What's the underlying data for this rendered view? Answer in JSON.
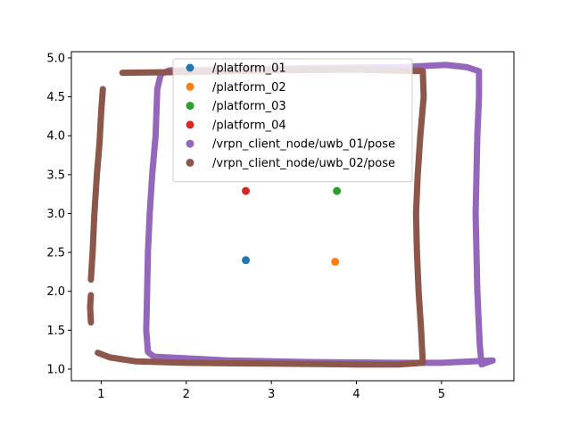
{
  "chart_data": {
    "type": "scatter",
    "title": "",
    "xlabel": "",
    "ylabel": "",
    "xlim": [
      0.65,
      5.85
    ],
    "ylim": [
      0.85,
      5.08
    ],
    "xticks": [
      1,
      2,
      3,
      4,
      5
    ],
    "yticks": [
      1.0,
      1.5,
      2.0,
      2.5,
      3.0,
      3.5,
      4.0,
      4.5,
      5.0
    ],
    "xtick_labels": [
      "1",
      "2",
      "3",
      "4",
      "5"
    ],
    "ytick_labels": [
      "1.0",
      "1.5",
      "2.0",
      "2.5",
      "3.0",
      "3.5",
      "4.0",
      "4.5",
      "5.0"
    ],
    "grid": false,
    "legend_position": "top-center",
    "series": [
      {
        "name": "/platform_01",
        "color": "#1f77b4",
        "style": "points",
        "points": [
          [
            2.7,
            2.4
          ]
        ]
      },
      {
        "name": "/platform_02",
        "color": "#ff7f0e",
        "style": "points",
        "points": [
          [
            3.75,
            2.38
          ]
        ]
      },
      {
        "name": "/platform_03",
        "color": "#2ca02c",
        "style": "points",
        "points": [
          [
            3.77,
            3.29
          ]
        ]
      },
      {
        "name": "/platform_04",
        "color": "#d62728",
        "style": "points",
        "points": [
          [
            2.7,
            3.29
          ]
        ]
      },
      {
        "name": "/vrpn_client_node/uwb_01/pose",
        "color": "#9467bd",
        "style": "trajectory",
        "segments": [
          [
            [
              1.62,
              1.16
            ],
            [
              2.5,
              1.11
            ],
            [
              3.5,
              1.09
            ],
            [
              4.5,
              1.08
            ],
            [
              5.0,
              1.08
            ],
            [
              5.6,
              1.11
            ],
            [
              5.47,
              1.06
            ],
            [
              5.45,
              1.3
            ],
            [
              5.42,
              2.0
            ],
            [
              5.4,
              3.0
            ],
            [
              5.42,
              4.0
            ],
            [
              5.44,
              4.5
            ],
            [
              5.44,
              4.83
            ],
            [
              5.3,
              4.88
            ],
            [
              5.05,
              4.91
            ],
            [
              4.85,
              4.9
            ],
            [
              4.5,
              4.88
            ],
            [
              3.5,
              4.87
            ],
            [
              2.5,
              4.85
            ],
            [
              1.8,
              4.84
            ],
            [
              1.7,
              4.79
            ],
            [
              1.66,
              4.6
            ],
            [
              1.64,
              4.0
            ],
            [
              1.6,
              3.5
            ],
            [
              1.57,
              3.0
            ],
            [
              1.55,
              2.5
            ],
            [
              1.54,
              2.0
            ],
            [
              1.53,
              1.5
            ],
            [
              1.55,
              1.22
            ],
            [
              1.62,
              1.16
            ]
          ]
        ]
      },
      {
        "name": "/vrpn_client_node/uwb_02/pose",
        "color": "#8c564b",
        "style": "trajectory",
        "segments": [
          [
            [
              1.25,
              4.81
            ],
            [
              2.0,
              4.82
            ],
            [
              3.0,
              4.84
            ],
            [
              4.0,
              4.85
            ],
            [
              4.78,
              4.83
            ],
            [
              4.79,
              4.5
            ],
            [
              4.75,
              4.0
            ],
            [
              4.72,
              3.5
            ],
            [
              4.7,
              3.0
            ],
            [
              4.71,
              2.5
            ],
            [
              4.73,
              2.0
            ],
            [
              4.76,
              1.5
            ],
            [
              4.78,
              1.08
            ],
            [
              4.5,
              1.06
            ],
            [
              4.0,
              1.06
            ],
            [
              3.0,
              1.07
            ],
            [
              2.0,
              1.08
            ],
            [
              1.4,
              1.1
            ],
            [
              1.1,
              1.15
            ],
            [
              0.96,
              1.21
            ]
          ],
          [
            [
              0.88,
              1.6
            ],
            [
              0.87,
              1.8
            ],
            [
              0.88,
              1.95
            ]
          ],
          [
            [
              0.88,
              2.15
            ],
            [
              0.9,
              2.5
            ],
            [
              0.92,
              3.0
            ],
            [
              0.95,
              3.5
            ],
            [
              0.98,
              3.9
            ],
            [
              1.0,
              4.3
            ],
            [
              1.02,
              4.6
            ]
          ]
        ]
      }
    ]
  }
}
